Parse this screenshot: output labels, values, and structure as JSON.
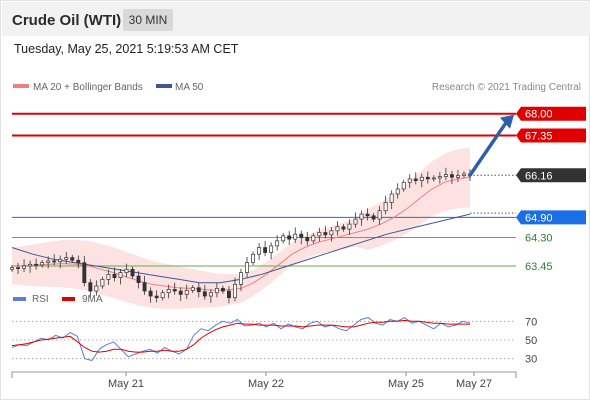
{
  "header": {
    "title": "Crude Oil (WTI)",
    "timeframe": "30 MIN",
    "timestamp": "Tuesday, May 25, 2021 5:19:53 AM CET"
  },
  "legend": {
    "ma20_label": "MA 20 + Bollinger Bands",
    "ma50_label": "MA 50",
    "credit": "Research © 2021 Trading Central",
    "rsi_label": "RSI",
    "rsi_ma_label": "9MA"
  },
  "colors": {
    "red": "#e00000",
    "blue_level": "#1a6ee6",
    "green_level": "#6aa84f",
    "ma20": "#f08080",
    "bollinger": "#fde2e2",
    "ma50": "#3b5998",
    "candle": "#333333",
    "current": "#333333",
    "rsi": "#5b7fd6",
    "rsi_ma": "#e00000",
    "arrow": "#2e5fa8"
  },
  "chart_data": [
    {
      "type": "candlestick",
      "title": "Crude Oil (WTI)",
      "timeframe": "30 MIN",
      "ylim": [
        63.0,
        68.2
      ],
      "x_ticks": [
        "May 21",
        "May 22",
        "May 25",
        "May 27"
      ],
      "levels": [
        {
          "value": 68.0,
          "label": "68.00",
          "kind": "resistance"
        },
        {
          "value": 67.35,
          "label": "67.35",
          "kind": "resistance"
        },
        {
          "value": 66.16,
          "label": "66.16",
          "kind": "current"
        },
        {
          "value": 64.9,
          "label": "64.90",
          "kind": "pivot"
        },
        {
          "value": 64.3,
          "label": "64.30",
          "kind": "support"
        },
        {
          "value": 63.45,
          "label": "63.45",
          "kind": "support"
        }
      ],
      "close_series": [
        63.4,
        63.38,
        63.45,
        63.5,
        63.48,
        63.55,
        63.6,
        63.58,
        63.65,
        63.7,
        63.62,
        63.55,
        62.95,
        62.7,
        62.85,
        63.05,
        63.2,
        63.1,
        63.25,
        63.35,
        63.15,
        62.95,
        62.7,
        62.55,
        62.5,
        62.65,
        62.75,
        62.7,
        62.6,
        62.72,
        62.8,
        62.68,
        62.55,
        62.65,
        62.78,
        62.7,
        62.5,
        62.9,
        63.25,
        63.55,
        63.8,
        64.0,
        63.85,
        64.05,
        64.2,
        64.35,
        64.25,
        64.4,
        64.3,
        64.2,
        64.35,
        64.45,
        64.38,
        64.5,
        64.62,
        64.55,
        64.7,
        64.85,
        65.0,
        64.95,
        64.85,
        65.1,
        65.35,
        65.6,
        65.75,
        65.95,
        66.05,
        66.0,
        66.1,
        66.05,
        66.08,
        66.12,
        66.18,
        66.1,
        66.15,
        66.2,
        66.16
      ],
      "ma20": [
        63.45,
        63.46,
        63.48,
        63.5,
        63.52,
        63.5,
        63.45,
        63.35,
        63.25,
        63.12,
        63.0,
        62.9,
        62.85,
        62.8,
        62.78,
        62.75,
        62.72,
        62.74,
        62.78,
        62.95,
        63.2,
        63.5,
        63.8,
        64.0,
        64.15,
        64.25,
        64.35,
        64.45,
        64.55,
        64.7,
        64.9,
        65.15,
        65.45,
        65.75,
        65.95,
        66.05,
        66.1
      ],
      "ma50": [
        64.0,
        63.8,
        63.65,
        63.55,
        63.45,
        63.35,
        63.25,
        63.15,
        63.05,
        62.95,
        62.95,
        63.05,
        63.2,
        63.4,
        63.6,
        63.8,
        64.0,
        64.2,
        64.4,
        64.55,
        64.7,
        64.85,
        65.0
      ],
      "projection": {
        "from": 66.16,
        "to": 68.0
      }
    },
    {
      "type": "line",
      "title": "RSI",
      "ylim": [
        20,
        80
      ],
      "y_ticks": [
        "70",
        "50",
        "30"
      ],
      "series": [
        {
          "name": "RSI",
          "values": [
            42,
            45,
            44,
            48,
            52,
            50,
            55,
            52,
            58,
            54,
            30,
            28,
            40,
            45,
            48,
            40,
            32,
            35,
            38,
            40,
            36,
            42,
            38,
            35,
            40,
            55,
            62,
            60,
            66,
            70,
            68,
            72,
            65,
            66,
            68,
            64,
            68,
            62,
            67,
            64,
            62,
            68,
            70,
            64,
            66,
            62,
            60,
            66,
            72,
            74,
            68,
            66,
            72,
            70,
            74,
            68,
            70,
            66,
            62,
            68,
            64,
            66,
            70,
            68
          ]
        },
        {
          "name": "9MA",
          "values": [
            44,
            45,
            46,
            48,
            50,
            51,
            52,
            53,
            54,
            48,
            42,
            38,
            37,
            38,
            40,
            40,
            38,
            37,
            37,
            38,
            38,
            39,
            38,
            38,
            40,
            45,
            52,
            57,
            61,
            64,
            66,
            68,
            67,
            67,
            66,
            66,
            66,
            65,
            65,
            65,
            64,
            65,
            66,
            66,
            66,
            65,
            64,
            64,
            66,
            68,
            69,
            69,
            70,
            70,
            71,
            70,
            70,
            69,
            68,
            68,
            67,
            67,
            67,
            67
          ]
        }
      ]
    }
  ]
}
